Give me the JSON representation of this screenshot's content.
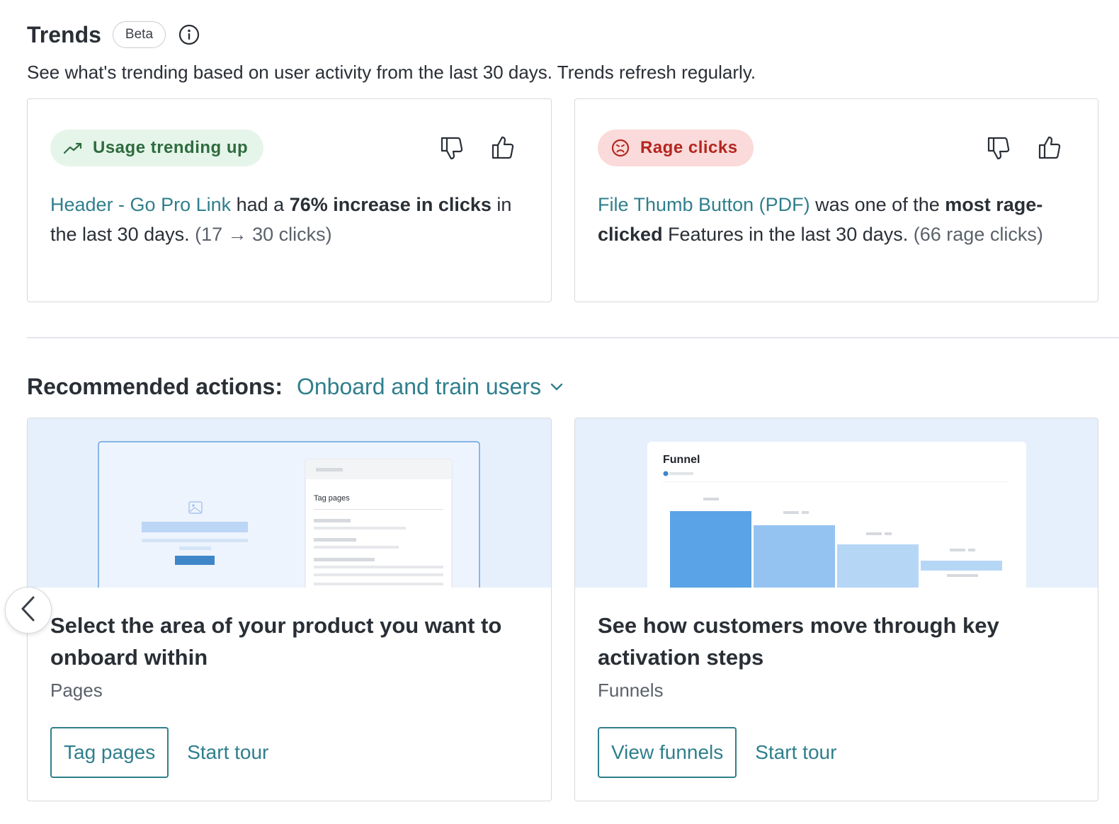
{
  "trends": {
    "title": "Trends",
    "badge": "Beta",
    "subtitle": "See what's trending based on user activity from the last 30 days. Trends refresh regularly.",
    "cards": [
      {
        "pill": "Usage trending up",
        "pill_color": "#2f6b3e",
        "feature": "Header - Go Pro Link",
        "text_mid": " had a ",
        "highlight": "76% increase in clicks",
        "text_end": " in the last 30 days. ",
        "detail": "(17 → 30 clicks)"
      },
      {
        "pill": "Rage clicks",
        "pill_color": "#b3261e",
        "feature": "File Thumb Button (PDF)",
        "text_mid": " was one of the ",
        "highlight": "most rage-clicked",
        "text_end": " Features in the last 30 days. ",
        "detail": "(66 rage clicks)"
      }
    ]
  },
  "recommended": {
    "label": "Recommended actions:",
    "selected": "Onboard and train users",
    "cards": [
      {
        "illus_label": "Tag pages",
        "heading": "Select the area of your product you want to onboard within",
        "sub": "Pages",
        "primary": "Tag pages",
        "secondary": "Start tour"
      },
      {
        "illus_label": "Funnel",
        "heading": "See how customers move through key activation steps",
        "sub": "Funnels",
        "primary": "View funnels",
        "secondary": "Start tour"
      }
    ]
  },
  "colors": {
    "accent": "#2f7f8c",
    "illustration_bg": "#e6f0fc"
  }
}
